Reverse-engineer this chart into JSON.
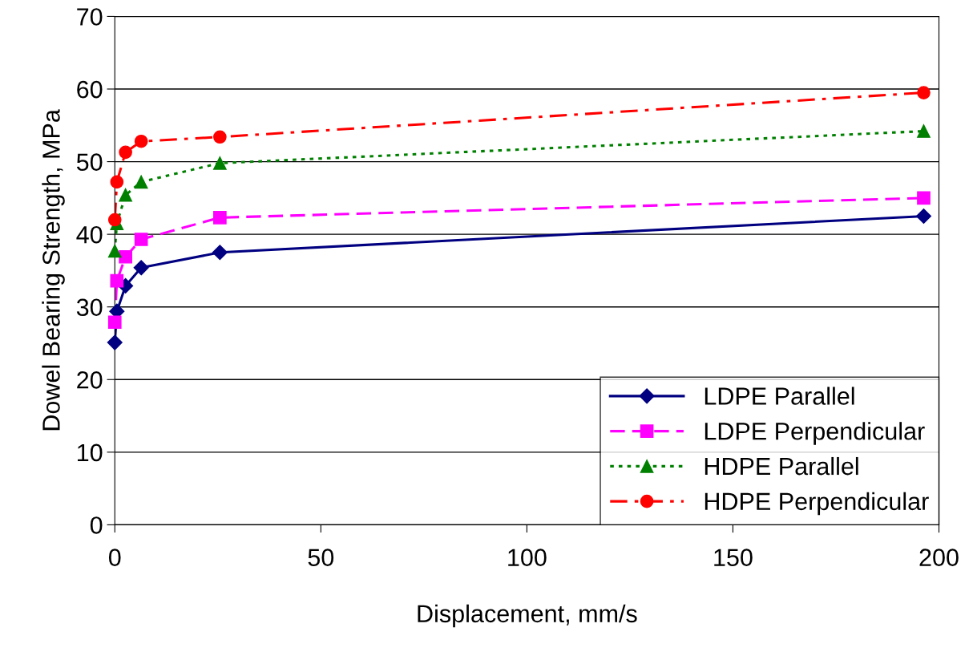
{
  "chart_data": {
    "type": "line",
    "xlabel": "Displacement, mm/s",
    "ylabel": "Dowel Bearing Strength, MPa",
    "x": [
      0,
      0.5,
      2.6,
      6.4,
      25.5,
      196.3
    ],
    "series": [
      {
        "name": "LDPE Parallel",
        "color": "#000080",
        "marker": "diamond",
        "line_style": "solid",
        "values": [
          25.1,
          29.4,
          32.9,
          35.4,
          37.5,
          42.5
        ]
      },
      {
        "name": "LDPE Perpendicular",
        "color": "#ff00ff",
        "marker": "square",
        "line_style": "dashed",
        "values": [
          27.9,
          33.6,
          36.9,
          39.3,
          42.3,
          45.0
        ]
      },
      {
        "name": "HDPE Parallel",
        "color": "#008000",
        "marker": "triangle",
        "line_style": "dotted",
        "values": [
          37.7,
          41.5,
          45.4,
          47.2,
          49.8,
          54.2
        ]
      },
      {
        "name": "HDPE Perpendicular",
        "color": "#ff0000",
        "marker": "circle",
        "line_style": "dashdot",
        "values": [
          42.0,
          47.2,
          51.3,
          52.8,
          53.4,
          59.5
        ]
      }
    ],
    "xlim": [
      0,
      200
    ],
    "xticks": [
      0,
      50,
      100,
      150,
      200
    ],
    "ylim": [
      0,
      70
    ],
    "yticks": [
      0,
      10,
      20,
      30,
      40,
      50,
      60,
      70
    ],
    "grid": "y",
    "legend": "bottom right"
  }
}
